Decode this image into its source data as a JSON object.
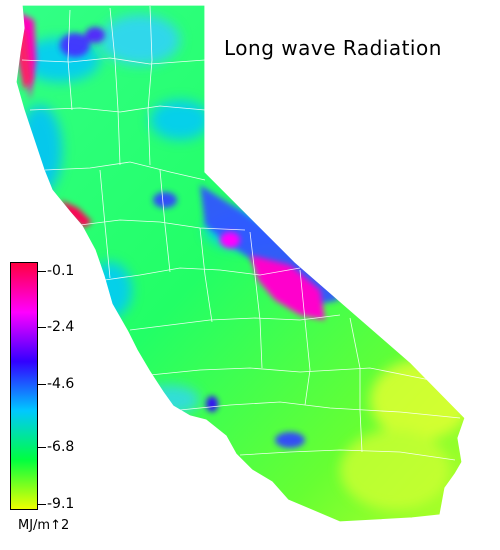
{
  "map": {
    "title": "Long wave Radiation",
    "region": "California",
    "legend": {
      "units": "MJ/m↑2",
      "ticks": [
        "-0.1",
        "-2.4",
        "-4.6",
        "-6.8",
        "-9.1"
      ],
      "colors": [
        "#ff0040",
        "#ff00ff",
        "#3300ff",
        "#00c8ff",
        "#00ff40",
        "#eeff00"
      ]
    }
  }
}
